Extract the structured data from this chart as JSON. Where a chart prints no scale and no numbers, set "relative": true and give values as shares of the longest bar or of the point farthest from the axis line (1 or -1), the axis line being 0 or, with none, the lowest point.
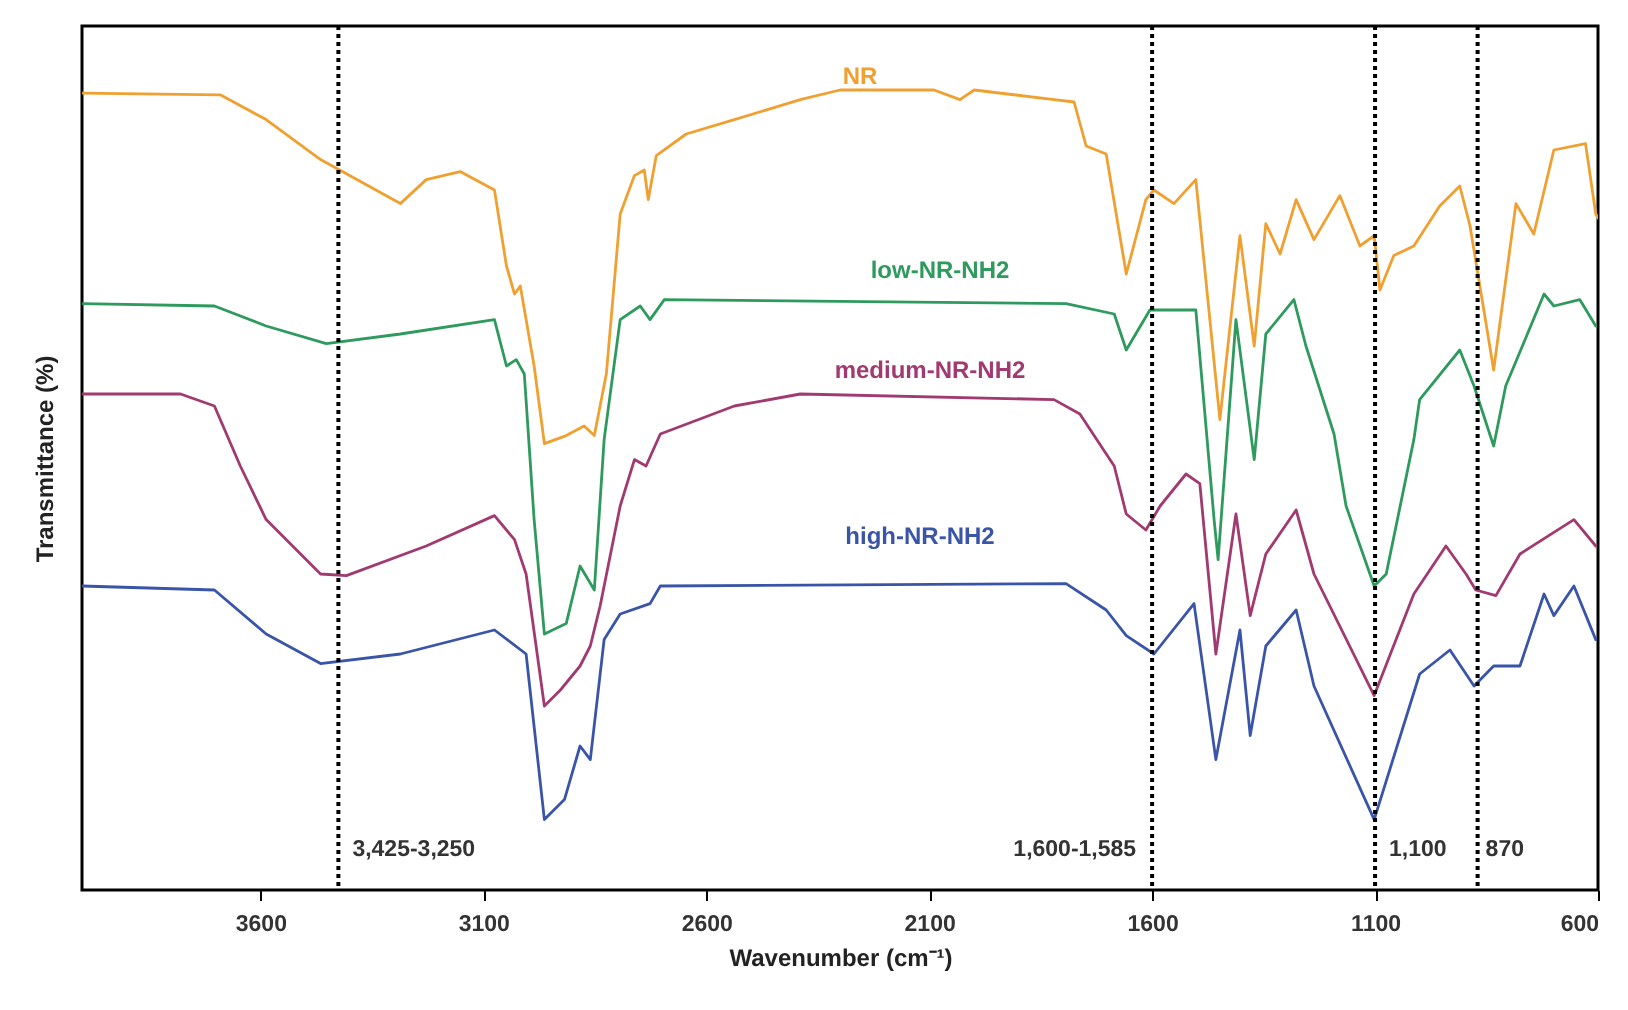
{
  "chart_data": {
    "type": "line",
    "relative": true,
    "xlabel": "Wavenumber (cm⁻¹)",
    "ylabel": "Transmittance (%)",
    "xlim": [
      4000,
      600
    ],
    "xticks": [
      3600,
      3100,
      2600,
      2100,
      1600,
      1100,
      600
    ],
    "grid": false,
    "marker": "none",
    "line_style": "solid",
    "series": [
      {
        "name": "NR",
        "color": "#f0a030",
        "x": [
          4000,
          3690,
          3587,
          3465,
          3286,
          3228,
          3152,
          3075,
          3048,
          3030,
          3017,
          2986,
          2963,
          2914,
          2874,
          2851,
          2824,
          2793,
          2761,
          2739,
          2730,
          2712,
          2645,
          2537,
          2389,
          2300,
          2089,
          2031,
          1999,
          1820,
          1775,
          1748,
          1703,
          1658,
          1614,
          1596,
          1551,
          1502,
          1448,
          1403,
          1371,
          1345,
          1313,
          1277,
          1237,
          1179,
          1134,
          1102,
          1089,
          1058,
          1013,
          955,
          910,
          887,
          834,
          784,
          744,
          699,
          628,
          605,
          600
        ],
        "values": [
          0.996,
          0.994,
          0.963,
          0.913,
          0.858,
          0.888,
          0.898,
          0.875,
          0.78,
          0.745,
          0.755,
          0.655,
          0.558,
          0.568,
          0.58,
          0.568,
          0.645,
          0.845,
          0.893,
          0.9,
          0.863,
          0.918,
          0.945,
          0.963,
          0.988,
          1,
          1,
          0.988,
          1,
          0.988,
          0.985,
          0.93,
          0.92,
          0.77,
          0.863,
          0.875,
          0.858,
          0.888,
          0.588,
          0.818,
          0.68,
          0.833,
          0.795,
          0.863,
          0.813,
          0.868,
          0.805,
          0.818,
          0.75,
          0.793,
          0.805,
          0.855,
          0.88,
          0.83,
          0.65,
          0.858,
          0.82,
          0.925,
          0.933,
          0.845,
          0.84
        ]
      },
      {
        "name": "low-NR-NH2",
        "color": "#2e9a5e",
        "x": [
          4000,
          3703,
          3587,
          3452,
          3286,
          3075,
          3048,
          3026,
          3008,
          2986,
          2963,
          2914,
          2883,
          2851,
          2829,
          2793,
          2748,
          2726,
          2694,
          1793,
          1685,
          1658,
          1605,
          1502,
          1461,
          1452,
          1412,
          1371,
          1345,
          1282,
          1255,
          1192,
          1165,
          1102,
          1075,
          1013,
          1000,
          910,
          878,
          834,
          807,
          721,
          699,
          641,
          605
        ],
        "values": [
          0.733,
          0.73,
          0.705,
          0.683,
          0.695,
          0.713,
          0.655,
          0.663,
          0.645,
          0.463,
          0.32,
          0.333,
          0.405,
          0.375,
          0.563,
          0.713,
          0.73,
          0.713,
          0.738,
          0.733,
          0.72,
          0.675,
          0.725,
          0.725,
          0.463,
          0.413,
          0.713,
          0.538,
          0.695,
          0.738,
          0.68,
          0.57,
          0.48,
          0.38,
          0.395,
          0.563,
          0.613,
          0.675,
          0.63,
          0.555,
          0.63,
          0.745,
          0.73,
          0.738,
          0.705
        ]
      },
      {
        "name": "medium-NR-NH2",
        "color": "#a03a70",
        "x": [
          4000,
          3779,
          3703,
          3645,
          3587,
          3465,
          3407,
          3228,
          3075,
          3030,
          3004,
          2963,
          2927,
          2883,
          2860,
          2838,
          2793,
          2761,
          2735,
          2703,
          2537,
          2389,
          1820,
          1762,
          1685,
          1658,
          1614,
          1582,
          1524,
          1493,
          1457,
          1412,
          1380,
          1345,
          1277,
          1237,
          1102,
          1013,
          941,
          896,
          874,
          829,
          775,
          654,
          605
        ],
        "values": [
          0.62,
          0.62,
          0.605,
          0.53,
          0.463,
          0.395,
          0.393,
          0.43,
          0.468,
          0.438,
          0.395,
          0.23,
          0.25,
          0.28,
          0.305,
          0.355,
          0.48,
          0.538,
          0.53,
          0.57,
          0.605,
          0.62,
          0.613,
          0.595,
          0.53,
          0.47,
          0.45,
          0.48,
          0.52,
          0.508,
          0.295,
          0.47,
          0.343,
          0.42,
          0.475,
          0.395,
          0.243,
          0.37,
          0.43,
          0.395,
          0.375,
          0.368,
          0.42,
          0.463,
          0.43
        ]
      },
      {
        "name": "high-NR-NH2",
        "color": "#3a55a8",
        "x": [
          4000,
          3703,
          3587,
          3465,
          3286,
          3075,
          3004,
          2963,
          2918,
          2883,
          2860,
          2829,
          2793,
          2726,
          2703,
          1793,
          1703,
          1658,
          1596,
          1506,
          1457,
          1403,
          1380,
          1345,
          1277,
          1237,
          1102,
          1000,
          932,
          878,
          834,
          775,
          721,
          699,
          654,
          605
        ],
        "values": [
          0.38,
          0.375,
          0.32,
          0.283,
          0.295,
          0.325,
          0.295,
          0.088,
          0.113,
          0.18,
          0.163,
          0.313,
          0.345,
          0.358,
          0.38,
          0.383,
          0.35,
          0.318,
          0.295,
          0.358,
          0.163,
          0.325,
          0.193,
          0.305,
          0.35,
          0.255,
          0.088,
          0.27,
          0.3,
          0.255,
          0.28,
          0.28,
          0.37,
          0.343,
          0.38,
          0.313
        ]
      }
    ],
    "ref_lines": [
      {
        "axis": "x",
        "value": 3425,
        "label": "3,425-3,250",
        "color": "#000000",
        "line_style": "dotted"
      },
      {
        "axis": "x",
        "value": 1600,
        "label": "1,600-1,585",
        "color": "#000000",
        "line_style": "dotted"
      },
      {
        "axis": "x",
        "value": 1100,
        "label": "1,100",
        "color": "#000000",
        "line_style": "dotted"
      },
      {
        "axis": "x",
        "value": 870,
        "label": "870",
        "color": "#000000",
        "line_style": "dotted"
      }
    ]
  }
}
